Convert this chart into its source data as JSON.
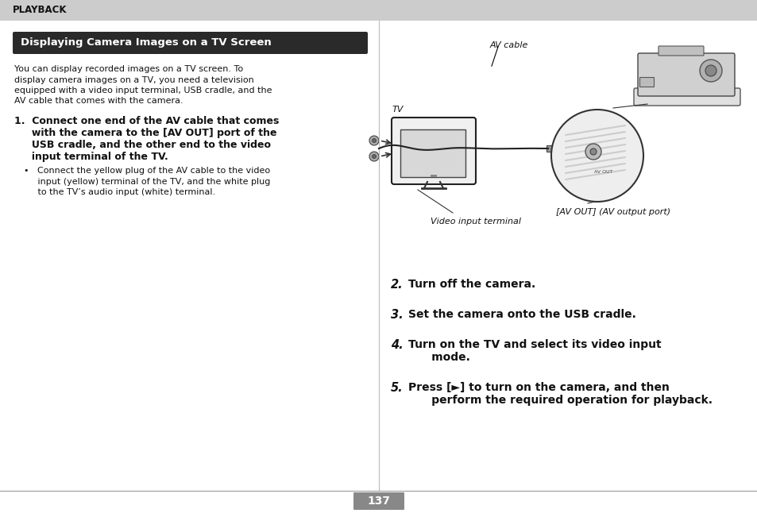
{
  "bg_color": "#ffffff",
  "header_bg": "#cccccc",
  "header_text": "PLAYBACK",
  "title_bg": "#2a2a2a",
  "title_text": "Displaying Camera Images on a TV Screen",
  "title_text_color": "#ffffff",
  "body_lines": [
    "You can display recorded images on a TV screen. To",
    "display camera images on a TV, you need a television",
    "equipped with a video input terminal, USB cradle, and the",
    "AV cable that comes with the camera."
  ],
  "step1_lines": [
    "1.  Connect one end of the AV cable that comes",
    "     with the camera to the [AV OUT] port of the",
    "     USB cradle, and the other end to the video",
    "     input terminal of the TV."
  ],
  "bullet_lines": [
    "•   Connect the yellow plug of the AV cable to the video",
    "     input (yellow) terminal of the TV, and the white plug",
    "     to the TV’s audio input (white) terminal."
  ],
  "step2": "Turn off the camera.",
  "step3": "Set the camera onto the USB cradle.",
  "step4_lines": [
    "Turn on the TV and select its video input",
    "      mode."
  ],
  "step5_lines": [
    "Press [►] to turn on the camera, and then",
    "      perform the required operation for playback."
  ],
  "label_av_cable": "AV cable",
  "label_tv": "TV",
  "label_video_input": "Video input terminal",
  "label_av_out": "[AV OUT] (AV output port)",
  "page_number": "137",
  "divider_color": "#999999",
  "page_num_bg": "#888888",
  "page_num_color": "#ffffff"
}
